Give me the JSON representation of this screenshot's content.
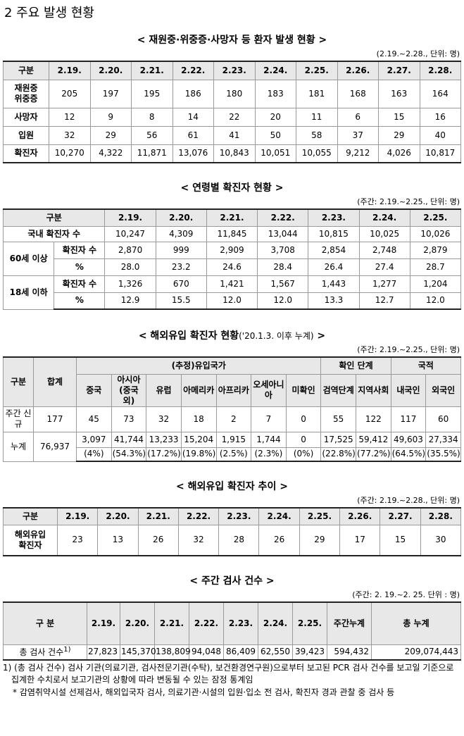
{
  "heading": "2  주요 발생 현황",
  "t1": {
    "title": "< 재원중·위중증·사망자 등 환자 발생 현황 >",
    "unit": "(2.19.~2.28., 단위: 명)",
    "header": [
      "구분",
      "2.19.",
      "2.20.",
      "2.21.",
      "2.22.",
      "2.23.",
      "2.24.",
      "2.25.",
      "2.26.",
      "2.27.",
      "2.28."
    ],
    "rows": [
      [
        "재원중\n위중증",
        "205",
        "197",
        "195",
        "186",
        "180",
        "183",
        "181",
        "168",
        "163",
        "164"
      ],
      [
        "사망자",
        "12",
        "9",
        "8",
        "14",
        "22",
        "20",
        "11",
        "6",
        "15",
        "16"
      ],
      [
        "입원",
        "32",
        "29",
        "56",
        "61",
        "41",
        "50",
        "58",
        "37",
        "29",
        "40"
      ],
      [
        "확진자",
        "10,270",
        "4,322",
        "11,871",
        "13,076",
        "10,843",
        "10,051",
        "10,055",
        "9,212",
        "4,026",
        "10,817"
      ]
    ]
  },
  "t2": {
    "title": "< 연령별 확진자 현황 >",
    "unit": "(주간: 2.19.~2.25., 단위: 명)",
    "header": [
      "구분",
      "2.19.",
      "2.20.",
      "2.21.",
      "2.22.",
      "2.23.",
      "2.24.",
      "2.25."
    ],
    "total": [
      "국내 확진자 수",
      "10,247",
      "4,309",
      "11,845",
      "13,044",
      "10,815",
      "10,025",
      "10,026"
    ],
    "groups": [
      {
        "label": "60세 이상",
        "rows": [
          [
            "확진자 수",
            "2,870",
            "999",
            "2,909",
            "3,708",
            "2,854",
            "2,748",
            "2,879"
          ],
          [
            "%",
            "28.0",
            "23.2",
            "24.6",
            "28.4",
            "26.4",
            "27.4",
            "28.7"
          ]
        ]
      },
      {
        "label": "18세 이하",
        "rows": [
          [
            "확진자 수",
            "1,326",
            "670",
            "1,421",
            "1,567",
            "1,443",
            "1,277",
            "1,204"
          ],
          [
            "%",
            "12.9",
            "15.5",
            "12.0",
            "12.0",
            "13.3",
            "12.7",
            "12.0"
          ]
        ]
      }
    ]
  },
  "t3": {
    "title": "< 해외유입 확진자 현황",
    "title_note": "('20.1.3. 이후 누계)",
    "title_end": ">",
    "unit": "(주간: 2.19.~2.25., 단위: 명)",
    "header_top": [
      "구분",
      "합계",
      "(추정)유입국가",
      "확인 단계",
      "국적"
    ],
    "header_sub": [
      "중국",
      "아시아(중국 외)",
      "유럽",
      "아메리카",
      "아프리카",
      "오세아니아",
      "미확인",
      "검역단계",
      "지역사회",
      "내국인",
      "외국인"
    ],
    "weekly": [
      "주간 신규",
      "177",
      "45",
      "73",
      "32",
      "18",
      "2",
      "7",
      "0",
      "55",
      "122",
      "117",
      "60"
    ],
    "cumulative": {
      "label": "누계",
      "total": "76,937",
      "counts": [
        "3,097",
        "41,744",
        "13,233",
        "15,204",
        "1,915",
        "1,744",
        "0",
        "17,525",
        "59,412",
        "49,603",
        "27,334"
      ],
      "shares": [
        "(4%)",
        "(54.3%)",
        "(17.2%)",
        "(19.8%)",
        "(2.5%)",
        "(2.3%)",
        "(0%)",
        "(22.8%)",
        "(77.2%)",
        "(64.5%)",
        "(35.5%)"
      ]
    }
  },
  "t4": {
    "title": "< 해외유입 확진자 추이 >",
    "unit": "(주간: 2.19.~2.28., 단위: 명)",
    "header": [
      "구분",
      "2.19.",
      "2.20.",
      "2.21.",
      "2.22.",
      "2.23.",
      "2.24.",
      "2.25.",
      "2.26.",
      "2.27.",
      "2.28."
    ],
    "row": [
      "해외유입\n확진자",
      "23",
      "13",
      "26",
      "32",
      "28",
      "26",
      "29",
      "17",
      "15",
      "30"
    ]
  },
  "t5": {
    "title": "< 주간 검사 건수 >",
    "unit": "(주간: 2. 19.~2. 25. 단위 : 명)",
    "header": [
      "구 분",
      "2.19.",
      "2.20.",
      "2.21.",
      "2.22.",
      "2.23.",
      "2.24.",
      "2.25.",
      "주간누계",
      "총 누계"
    ],
    "row": {
      "label": "총 검사 건수",
      "note": "1)",
      "values": [
        "27,823",
        "145,370",
        "138,809",
        "94,048",
        "86,409",
        "62,550",
        "39,423",
        "594,432",
        "209,074,443"
      ]
    }
  },
  "notes": [
    "1) (총 검사 건수) 검사 기관(의료기관, 검사전문기관(수탁), 보건환경연구원)으로부터 보고된 PCR 검사 건수를 보고일 기준으로 집계한 수치로서 보고기관의 상황에 따라 변동될 수 있는 잠정 통계임",
    "* 감염취약시설 선제검사, 해외입국자 검사, 의료기관·시설의 입원·입소 전 검사, 확진자 경과 관찰 중 검사 등"
  ]
}
